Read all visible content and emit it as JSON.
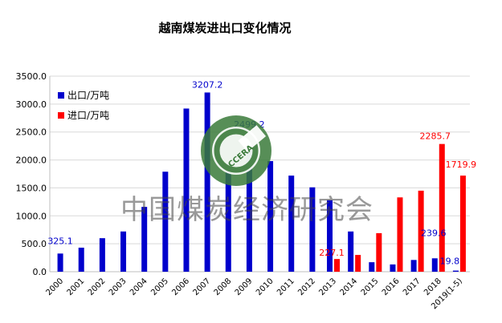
{
  "chart_data": {
    "type": "bar",
    "title": "越南煤炭进出口变化情况",
    "categories": [
      "2000",
      "2001",
      "2002",
      "2003",
      "2004",
      "2005",
      "2006",
      "2007",
      "2008",
      "2009",
      "2010",
      "2011",
      "2012",
      "2013",
      "2014",
      "2015",
      "2016",
      "2017",
      "2018",
      "2019(1-5)"
    ],
    "ylim": [
      0,
      3500
    ],
    "yticks": [
      "0.0",
      "500.0",
      "1000.0",
      "1500.0",
      "2000.0",
      "2500.0",
      "3000.0",
      "3500.0"
    ],
    "grid": true,
    "legend_position": "top-left",
    "series": [
      {
        "name": "出口/万吨",
        "color": "#0000cc",
        "values": [
          325.1,
          430,
          600,
          720,
          1160,
          1790,
          2920,
          3207.2,
          1930,
          2499.2,
          1980,
          1720,
          1510,
          1280,
          720,
          170,
          130,
          210,
          239.6,
          19.8
        ],
        "labels": [
          {
            "index": 0,
            "text": "325.1"
          },
          {
            "index": 7,
            "text": "3207.2"
          },
          {
            "index": 9,
            "text": "2499.2"
          },
          {
            "index": 18,
            "text": "239.6"
          },
          {
            "index": 19,
            "text": "19.8"
          }
        ]
      },
      {
        "name": "进口/万吨",
        "color": "#ff0000",
        "values": [
          null,
          null,
          null,
          null,
          null,
          null,
          null,
          null,
          null,
          null,
          null,
          null,
          null,
          227.1,
          300,
          690,
          1330,
          1450,
          2285.7,
          1719.9
        ],
        "labels": [
          {
            "index": 13,
            "text": "227.1"
          },
          {
            "index": 18,
            "text": "2285.7"
          },
          {
            "index": 19,
            "text": "1719.9"
          }
        ]
      }
    ]
  },
  "watermark": {
    "text": "中国煤炭经济研究会",
    "logo_text": "CCERA",
    "logo_color": "#3a7a3a"
  }
}
